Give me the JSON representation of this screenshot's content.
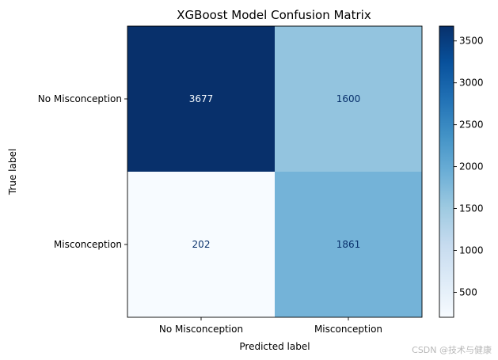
{
  "chart_data": {
    "type": "heatmap",
    "title": "XGBoost Model Confusion Matrix",
    "xlabel": "Predicted label",
    "ylabel": "True label",
    "x_categories": [
      "No Misconception",
      "Misconception"
    ],
    "y_categories": [
      "No Misconception",
      "Misconception"
    ],
    "matrix": [
      [
        3677,
        1600
      ],
      [
        202,
        1861
      ]
    ],
    "colormap": "Blues",
    "colorbar": {
      "min": 202,
      "max": 3677,
      "ticks": [
        500,
        1000,
        1500,
        2000,
        2500,
        3000,
        3500
      ]
    }
  },
  "watermark": "CSDN @技术与健康"
}
